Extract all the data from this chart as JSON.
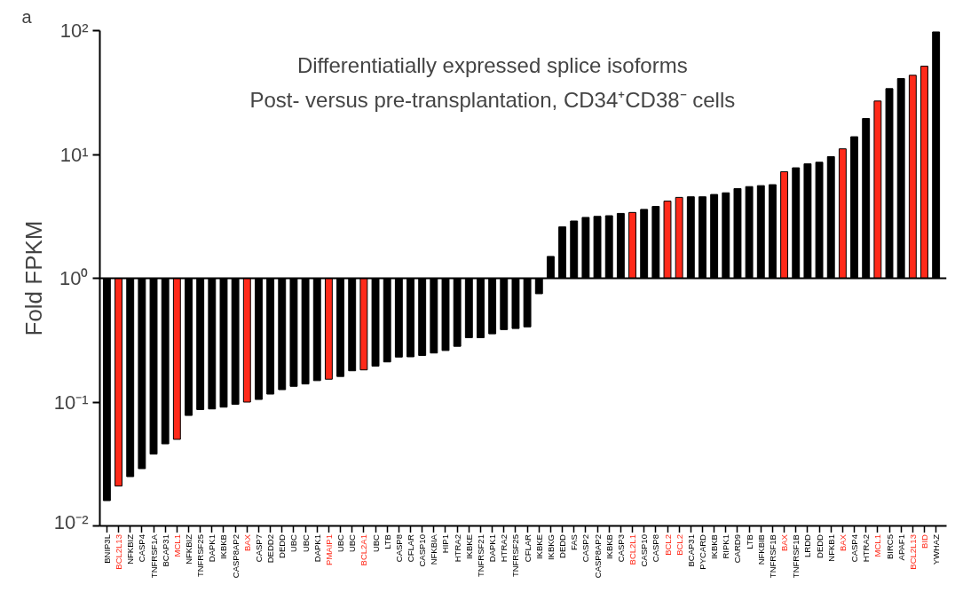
{
  "chart_data": {
    "type": "bar",
    "title": "Differentiatially expressed splice isoforms",
    "subtitle": "Post- versus pre-transplantation, CD34⁺CD38⁻ cells",
    "ylabel": "Fold FPKM",
    "annotations": [
      "a"
    ],
    "categories": [
      "BNIP3L",
      "BCL2L13",
      "NFKBIZ",
      "CASP4",
      "TNFRSF1A",
      "BCAP31",
      "MCL1",
      "NFKBIZ",
      "TNFRSF25",
      "DAPK1",
      "IKBKB",
      "CASP8AP2",
      "BAX",
      "CASP7",
      "DEDD2",
      "DEDD",
      "UBC",
      "UBC",
      "DAPK1",
      "PMAIP1",
      "UBC",
      "UBC",
      "BCL2A1",
      "UBC",
      "LTB",
      "CASP8",
      "CFLAR",
      "CASP10",
      "NFKBIA",
      "HIP1",
      "HTRA2",
      "IKBKE",
      "TNFRSF21",
      "DAPK1",
      "HTRA2",
      "TNFRSF25",
      "CFLAR",
      "IKBKE",
      "IKBKG",
      "DEDD",
      "FAS",
      "CASP2",
      "CASP8AP2",
      "IKBKB",
      "CASP3",
      "BCL2L1",
      "CASP10",
      "CASP8",
      "BCL2",
      "BCL2",
      "BCAP31",
      "PYCARD",
      "IKBKB",
      "RIPK1",
      "CARD9",
      "LTB",
      "NFKBIB",
      "TNFRSF1B",
      "BAX",
      "TNFRSF1B",
      "LRDD",
      "DEDD",
      "NFKB1",
      "BAX",
      "CASP4",
      "HTRA2",
      "MCL1",
      "BIRC5",
      "APAF1",
      "BCL2L13",
      "BID",
      "YWHAZ"
    ],
    "base": [
      1,
      1,
      1,
      1,
      1,
      1,
      1,
      1,
      1,
      1,
      1,
      1,
      1,
      1,
      1,
      1,
      1,
      1,
      1,
      1,
      1,
      1,
      1,
      1,
      1,
      1,
      1,
      1,
      1,
      1,
      1,
      1,
      1,
      1,
      1,
      1,
      1,
      1,
      1,
      1,
      1,
      1,
      1,
      1,
      1,
      1,
      1,
      1,
      1,
      1,
      1,
      1,
      1,
      1,
      1,
      1,
      1,
      1,
      1,
      1,
      1,
      1,
      1,
      1,
      1,
      1,
      1,
      1,
      1,
      1,
      1,
      1
    ],
    "values": [
      -0.984,
      -0.979,
      -0.975,
      -0.971,
      -0.962,
      -0.954,
      -0.95,
      -0.922,
      -0.913,
      -0.912,
      -0.909,
      -0.904,
      -0.9,
      -0.895,
      -0.884,
      -0.874,
      -0.866,
      -0.86,
      -0.851,
      -0.847,
      -0.839,
      -0.821,
      -0.818,
      -0.805,
      -0.789,
      -0.769,
      -0.768,
      -0.762,
      -0.751,
      -0.739,
      -0.718,
      -0.669,
      -0.669,
      -0.644,
      -0.615,
      -0.607,
      -0.595,
      -0.25,
      0.5,
      1.6,
      1.9,
      2.1,
      2.16,
      2.2,
      2.34,
      2.4,
      2.6,
      2.8,
      3.2,
      3.5,
      3.55,
      3.55,
      3.75,
      3.9,
      4.3,
      4.5,
      4.6,
      4.7,
      6.25,
      6.8,
      7.4,
      7.65,
      8.6,
      10.1,
      12.9,
      18.5,
      26,
      33,
      40,
      42.6,
      50.6,
      96.6
    ],
    "colors": [
      "#000000",
      "#ff2a1a",
      "#000000",
      "#000000",
      "#000000",
      "#000000",
      "#ff2a1a",
      "#000000",
      "#000000",
      "#000000",
      "#000000",
      "#000000",
      "#ff2a1a",
      "#000000",
      "#000000",
      "#000000",
      "#000000",
      "#000000",
      "#000000",
      "#ff2a1a",
      "#000000",
      "#000000",
      "#ff2a1a",
      "#000000",
      "#000000",
      "#000000",
      "#000000",
      "#000000",
      "#000000",
      "#000000",
      "#000000",
      "#000000",
      "#000000",
      "#000000",
      "#000000",
      "#000000",
      "#000000",
      "#000000",
      "#000000",
      "#000000",
      "#000000",
      "#000000",
      "#000000",
      "#000000",
      "#000000",
      "#ff2a1a",
      "#000000",
      "#000000",
      "#ff2a1a",
      "#ff2a1a",
      "#000000",
      "#000000",
      "#000000",
      "#000000",
      "#000000",
      "#000000",
      "#000000",
      "#000000",
      "#ff2a1a",
      "#000000",
      "#000000",
      "#000000",
      "#000000",
      "#ff2a1a",
      "#000000",
      "#000000",
      "#ff2a1a",
      "#000000",
      "#000000",
      "#ff2a1a",
      "#ff2a1a",
      "#000000"
    ],
    "log": true,
    "ylim": [
      0.01,
      100
    ],
    "yticks": [
      {
        "value": 0.01,
        "label": "10⁻²"
      },
      {
        "value": 0.1,
        "label": "10⁻¹"
      },
      {
        "value": 1,
        "label": "10⁰"
      },
      {
        "value": 10,
        "label": "10¹"
      },
      {
        "value": 100,
        "label": "10²"
      }
    ],
    "ref_lines": [
      {
        "axis": "y",
        "value": 1,
        "color": "#000000"
      }
    ],
    "grid": false
  }
}
